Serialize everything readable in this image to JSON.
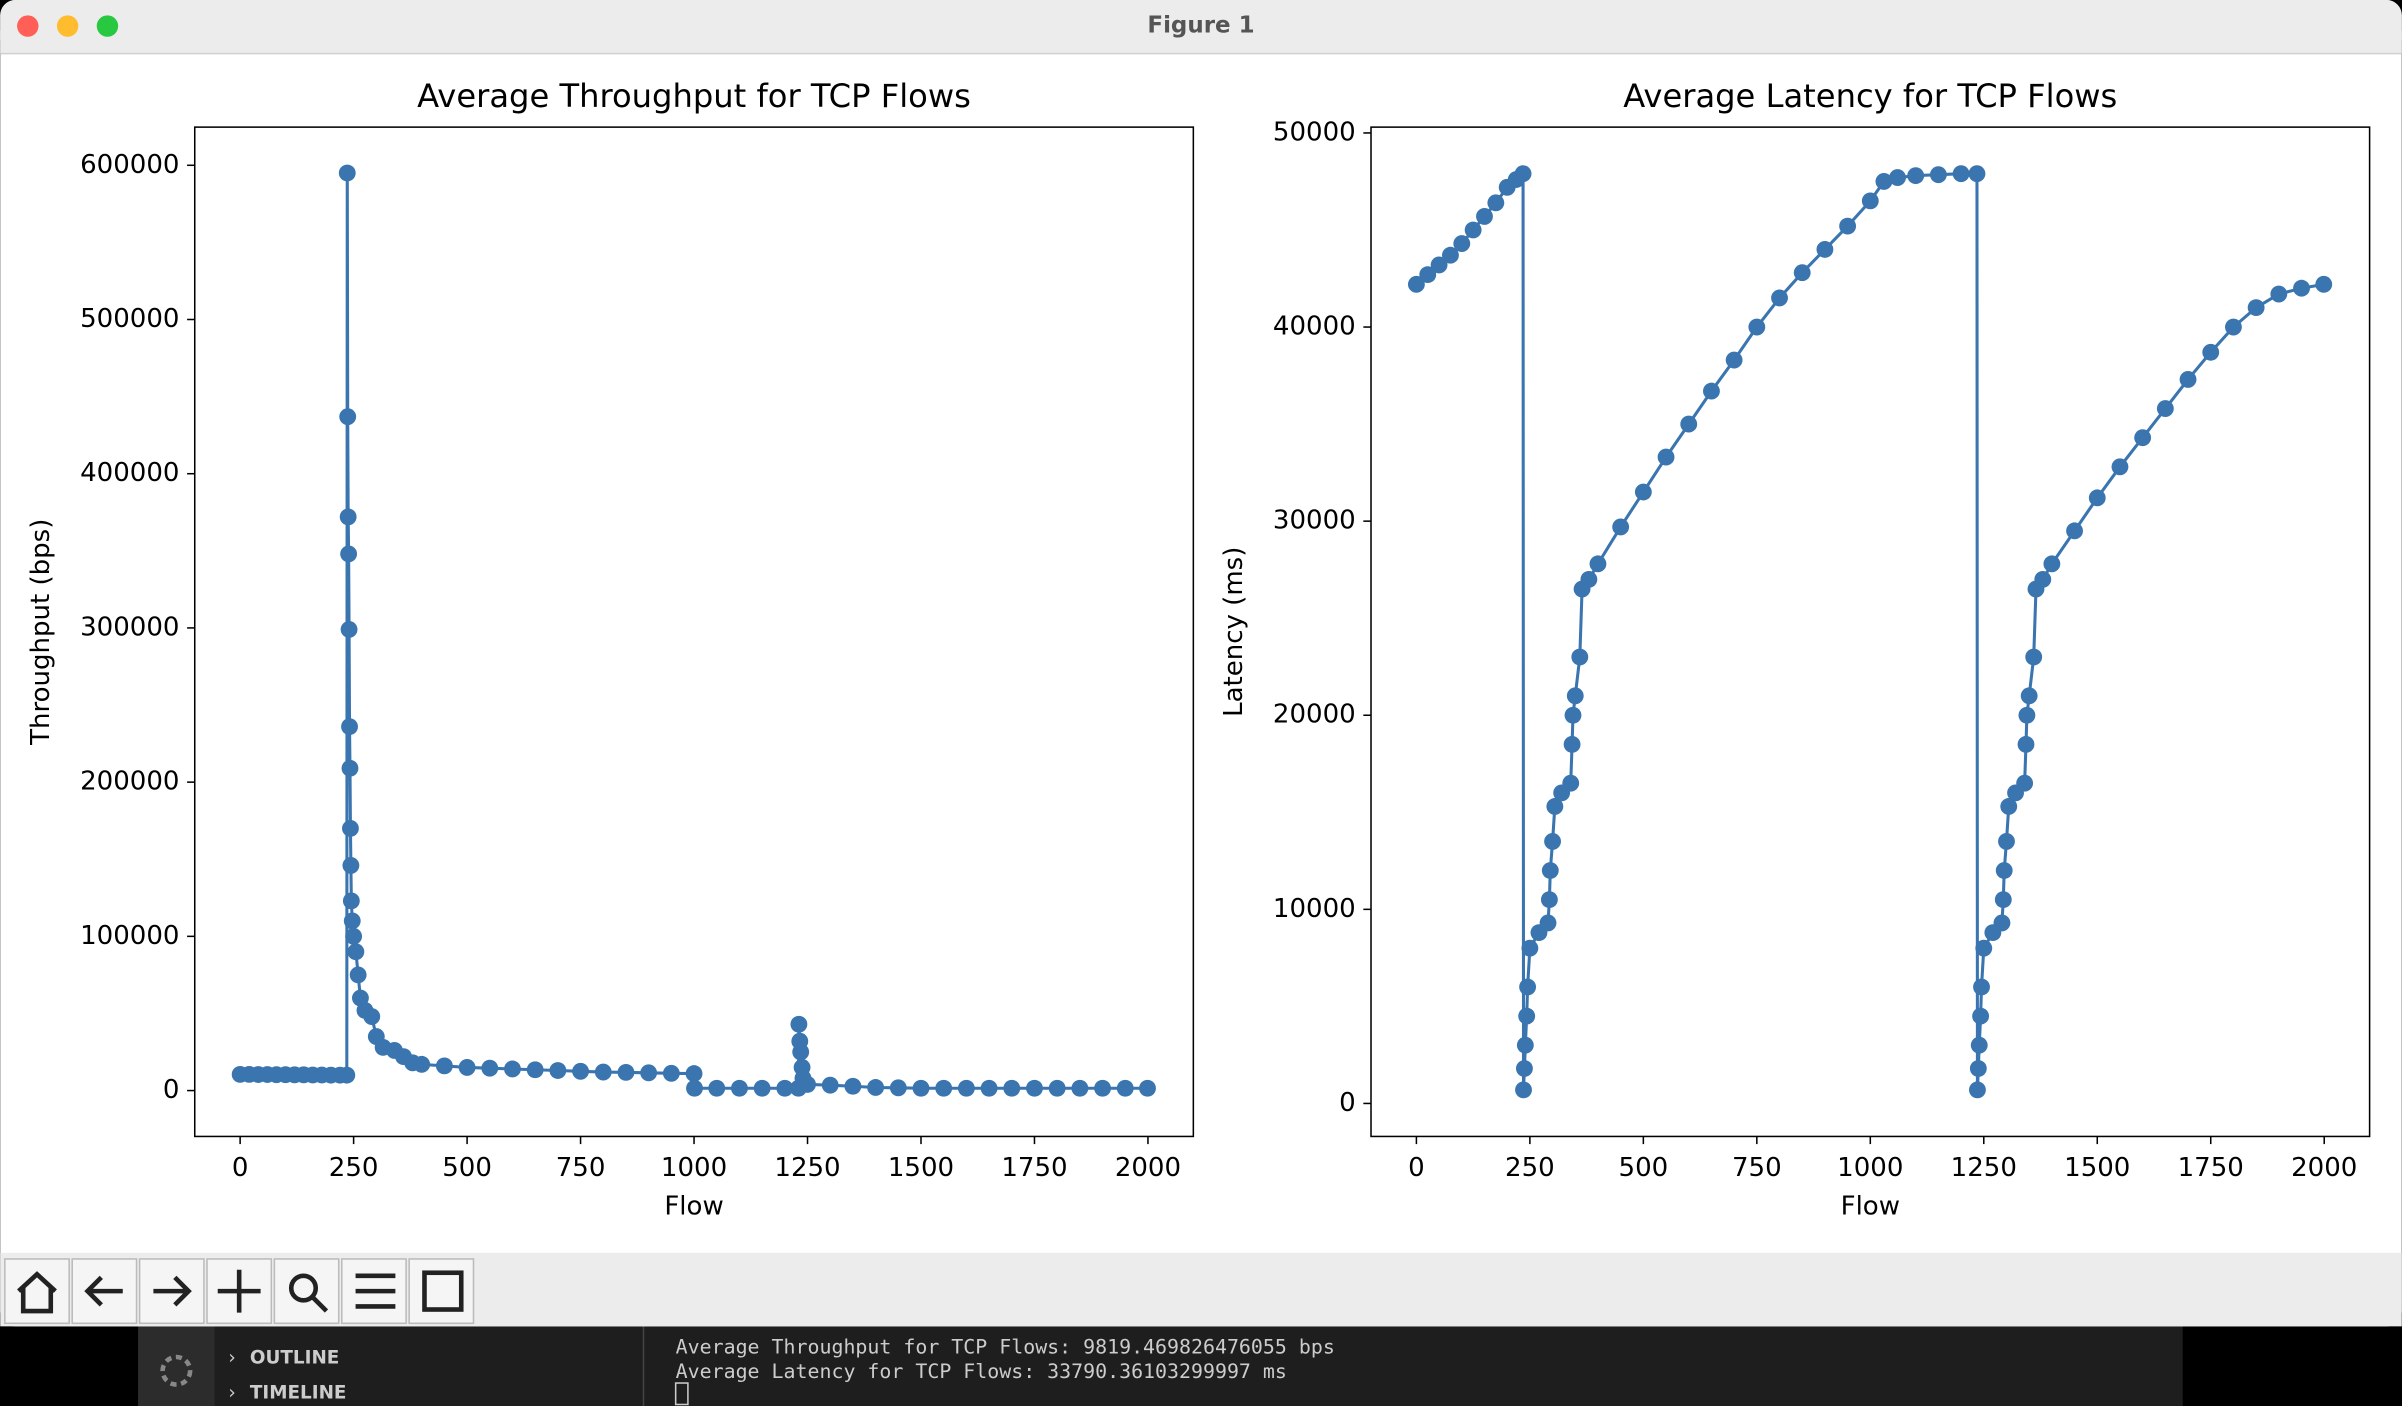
{
  "window": {
    "title": "Figure 1"
  },
  "chart_data": [
    {
      "type": "line",
      "title": "Average Throughput for TCP Flows",
      "xlabel": "Flow",
      "ylabel": "Throughput (bps)",
      "xlim": [
        -100,
        2100
      ],
      "ylim": [
        -29750,
        624750
      ],
      "xticks": [
        0,
        250,
        500,
        750,
        1000,
        1250,
        1500,
        1750,
        2000
      ],
      "yticks": [
        0,
        100000,
        200000,
        300000,
        400000,
        500000,
        600000
      ],
      "series": [
        {
          "name": "Throughput",
          "color": "#3a75b0",
          "marker": true,
          "x": [
            0,
            20,
            40,
            60,
            80,
            100,
            120,
            140,
            160,
            180,
            200,
            220,
            235,
            236,
            237,
            238,
            239,
            240,
            241,
            242,
            243,
            244,
            245,
            247,
            250,
            255,
            260,
            265,
            275,
            290,
            300,
            315,
            340,
            360,
            380,
            400,
            450,
            500,
            550,
            600,
            650,
            700,
            750,
            800,
            850,
            900,
            950,
            1000,
            1001,
            1050,
            1100,
            1150,
            1200,
            1230,
            1231,
            1233,
            1235,
            1238,
            1240,
            1250,
            1300,
            1350,
            1400,
            1450,
            1500,
            1550,
            1600,
            1650,
            1700,
            1750,
            1800,
            1850,
            1900,
            1950,
            1999
          ],
          "values": [
            10500,
            10500,
            10400,
            10400,
            10300,
            10300,
            10200,
            10200,
            10100,
            10100,
            10000,
            10000,
            10000,
            595000,
            437000,
            372000,
            348000,
            299000,
            236000,
            209000,
            170000,
            146000,
            123000,
            110000,
            100000,
            90000,
            75000,
            60000,
            52000,
            48000,
            35000,
            28000,
            26000,
            22000,
            18000,
            17000,
            16000,
            15000,
            14500,
            14000,
            13500,
            13000,
            12500,
            12000,
            11800,
            11500,
            11200,
            11000,
            1500,
            1500,
            1500,
            1500,
            1500,
            1500,
            43000,
            32000,
            25000,
            15000,
            8000,
            4000,
            3500,
            2800,
            2000,
            1800,
            1500,
            1500,
            1500,
            1500,
            1500,
            1500,
            1500,
            1500,
            1500,
            1500,
            1500
          ]
        }
      ]
    },
    {
      "type": "line",
      "title": "Average Latency for TCP Flows",
      "xlabel": "Flow",
      "ylabel": "Latency (ms)",
      "xlim": [
        -100,
        2100
      ],
      "ylim": [
        -1700,
        50300
      ],
      "xticks": [
        0,
        250,
        500,
        750,
        1000,
        1250,
        1500,
        1750,
        2000
      ],
      "yticks": [
        0,
        10000,
        20000,
        30000,
        40000,
        50000
      ],
      "series": [
        {
          "name": "Latency",
          "color": "#3a75b0",
          "marker": true,
          "x": [
            0,
            25,
            50,
            75,
            100,
            125,
            150,
            175,
            200,
            220,
            235,
            236,
            238,
            240,
            243,
            245,
            250,
            270,
            290,
            293,
            295,
            300,
            305,
            320,
            340,
            343,
            345,
            350,
            360,
            365,
            380,
            400,
            450,
            500,
            550,
            600,
            650,
            700,
            750,
            800,
            850,
            900,
            950,
            1000,
            1030,
            1060,
            1100,
            1150,
            1200,
            1235,
            1236,
            1238,
            1240,
            1243,
            1245,
            1250,
            1270,
            1290,
            1293,
            1295,
            1300,
            1305,
            1320,
            1340,
            1343,
            1345,
            1350,
            1360,
            1365,
            1380,
            1400,
            1450,
            1500,
            1550,
            1600,
            1650,
            1700,
            1750,
            1800,
            1850,
            1900,
            1950,
            1999
          ],
          "values": [
            42200,
            42700,
            43200,
            43700,
            44300,
            45000,
            45700,
            46400,
            47200,
            47600,
            47900,
            700,
            1800,
            3000,
            4500,
            6000,
            8000,
            8800,
            9300,
            10500,
            12000,
            13500,
            15300,
            16000,
            16500,
            18500,
            20000,
            21000,
            23000,
            26500,
            27000,
            27800,
            29700,
            31500,
            33300,
            35000,
            36700,
            38300,
            40000,
            41500,
            42800,
            44000,
            45200,
            46500,
            47500,
            47700,
            47800,
            47850,
            47900,
            47900,
            700,
            1800,
            3000,
            4500,
            6000,
            8000,
            8800,
            9300,
            10500,
            12000,
            13500,
            15300,
            16000,
            16500,
            18500,
            20000,
            21000,
            23000,
            26500,
            27000,
            27800,
            29500,
            31200,
            32800,
            34300,
            35800,
            37300,
            38700,
            40000,
            41000,
            41700,
            42000,
            42200
          ]
        }
      ]
    }
  ],
  "sidebar": {
    "items": [
      "OUTLINE",
      "TIMELINE"
    ]
  },
  "terminal": {
    "lines": [
      "Average Throughput for TCP Flows: 9819.469826476055 bps",
      "Average Latency for TCP Flows: 33790.36103299997 ms"
    ]
  }
}
